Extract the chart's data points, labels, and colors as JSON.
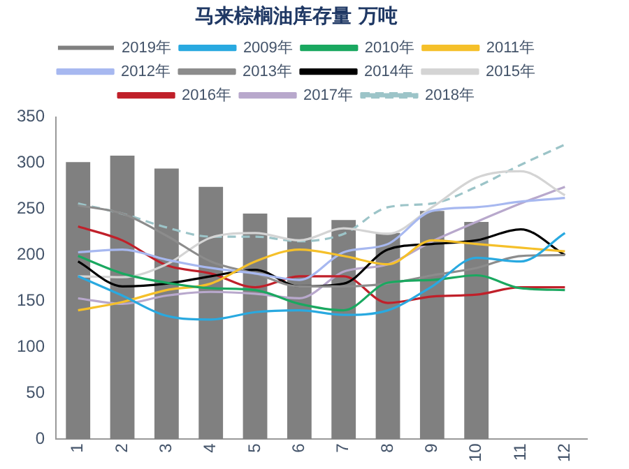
{
  "chart_data": {
    "type": "bar",
    "title": "马来棕榈油库存量 万吨",
    "categories": [
      "1",
      "2",
      "3",
      "4",
      "5",
      "6",
      "7",
      "8",
      "9",
      "10",
      "11",
      "12"
    ],
    "ylim": [
      0,
      350
    ],
    "yticks": [
      0,
      50,
      100,
      150,
      200,
      250,
      300,
      350
    ],
    "grid": false,
    "legend": "top",
    "marker": "none",
    "series": [
      {
        "name": "2019年",
        "color": "#808080",
        "values": [
          301,
          308,
          294,
          274,
          245,
          241,
          238,
          224,
          248,
          236,
          null,
          null
        ]
      },
      {
        "name": "2009年",
        "type": "line",
        "color": "#29a9e0",
        "values": [
          177,
          156,
          134,
          130,
          138,
          140,
          135,
          140,
          166,
          197,
          193,
          224
        ]
      },
      {
        "name": "2010年",
        "type": "line",
        "color": "#1aa860",
        "values": [
          199,
          180,
          170,
          164,
          162,
          147,
          140,
          170,
          173,
          178,
          164,
          162
        ]
      },
      {
        "name": "2011年",
        "type": "line",
        "color": "#f5c02a",
        "values": [
          140,
          149,
          162,
          169,
          193,
          206,
          199,
          190,
          216,
          212,
          208,
          204
        ]
      },
      {
        "name": "2012年",
        "type": "line",
        "color": "#a7b8f0",
        "values": [
          203,
          206,
          195,
          186,
          180,
          173,
          203,
          212,
          248,
          252,
          258,
          262
        ]
      },
      {
        "name": "2013年",
        "type": "line",
        "color": "#8c8c8c",
        "values": [
          254,
          245,
          221,
          193,
          180,
          166,
          166,
          169,
          178,
          186,
          199,
          200
        ]
      },
      {
        "name": "2014年",
        "type": "line",
        "color": "#000000",
        "values": [
          193,
          166,
          169,
          177,
          184,
          166,
          169,
          206,
          212,
          216,
          228,
          200
        ]
      },
      {
        "name": "2015年",
        "type": "line",
        "color": "#d4d4d4",
        "values": [
          177,
          176,
          190,
          219,
          224,
          216,
          229,
          223,
          252,
          284,
          291,
          265
        ]
      },
      {
        "name": "2016年",
        "type": "line",
        "color": "#c0202a",
        "values": [
          231,
          216,
          189,
          180,
          165,
          177,
          177,
          148,
          155,
          157,
          165,
          165
        ]
      },
      {
        "name": "2017年",
        "type": "line",
        "color": "#b8a8cc",
        "values": [
          153,
          147,
          156,
          160,
          158,
          153,
          182,
          190,
          215,
          236,
          256,
          274
        ]
      },
      {
        "name": "2018年",
        "type": "line",
        "color": "#9cc4c8",
        "line_style": "dashed",
        "values": [
          256,
          245,
          230,
          220,
          220,
          215,
          223,
          252,
          256,
          274,
          298,
          320
        ]
      }
    ]
  }
}
